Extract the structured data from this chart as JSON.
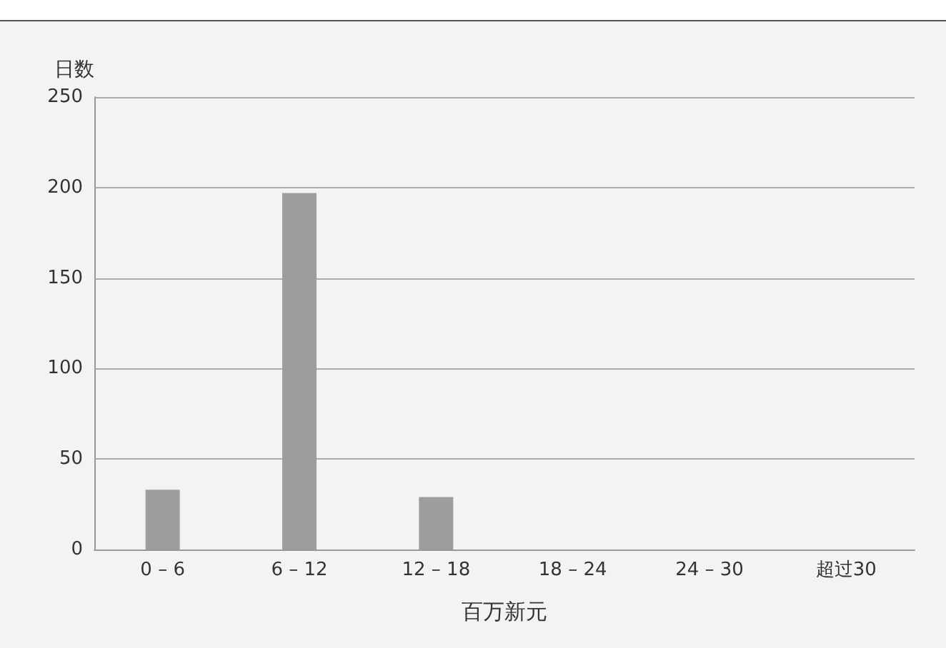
{
  "chart_data": {
    "type": "bar",
    "ylabel": "日数",
    "xlabel": "百万新元",
    "categories": [
      "0 – 6",
      "6 – 12",
      "12 – 18",
      "18 – 24",
      "24 – 30",
      "超过30"
    ],
    "values": [
      33,
      197,
      29,
      0,
      0,
      0
    ],
    "color": "#9d9d9b",
    "ylim": [
      0,
      250
    ],
    "yticks": [
      0,
      50,
      100,
      150,
      200,
      250
    ],
    "grid": "y"
  }
}
